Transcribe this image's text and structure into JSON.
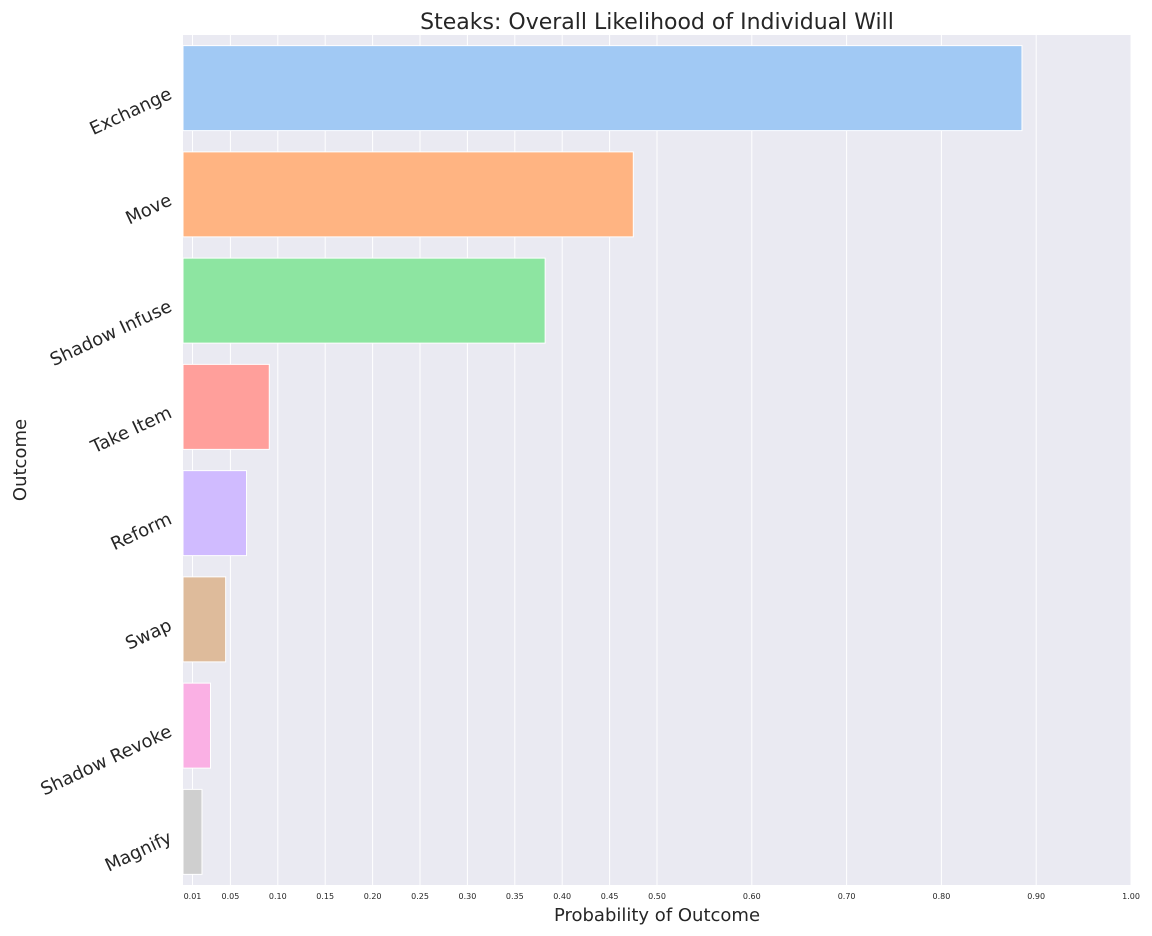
{
  "chart_data": {
    "type": "bar",
    "orientation": "horizontal",
    "title": "Steaks: Overall Likelihood of Individual Will",
    "xlabel": "Probability of Outcome",
    "ylabel": "Outcome",
    "xlim": [
      0,
      1.0
    ],
    "grid": true,
    "xticks": [
      {
        "value": 0.01,
        "label": "0.01"
      },
      {
        "value": 0.05,
        "label": "0.05"
      },
      {
        "value": 0.1,
        "label": "0.10"
      },
      {
        "value": 0.15,
        "label": "0.15"
      },
      {
        "value": 0.2,
        "label": "0.20"
      },
      {
        "value": 0.25,
        "label": "0.25"
      },
      {
        "value": 0.3,
        "label": "0.30"
      },
      {
        "value": 0.35,
        "label": "0.35"
      },
      {
        "value": 0.4,
        "label": "0.40"
      },
      {
        "value": 0.45,
        "label": "0.45"
      },
      {
        "value": 0.5,
        "label": "0.50"
      },
      {
        "value": 0.6,
        "label": "0.60"
      },
      {
        "value": 0.7,
        "label": "0.70"
      },
      {
        "value": 0.8,
        "label": "0.80"
      },
      {
        "value": 0.9,
        "label": "0.90"
      },
      {
        "value": 1.0,
        "label": "1.00"
      }
    ],
    "categories": [
      "Exchange",
      "Move",
      "Shadow Infuse",
      "Take Item",
      "Reform",
      "Swap",
      "Shadow Revoke",
      "Magnify"
    ],
    "values": [
      0.885,
      0.475,
      0.382,
      0.091,
      0.067,
      0.045,
      0.029,
      0.02
    ],
    "colors": [
      "#a1c9f4",
      "#ffb482",
      "#8de5a1",
      "#ff9f9b",
      "#d0bbff",
      "#debb9b",
      "#fab0e4",
      "#cfcfcf"
    ],
    "plot_background": "#eaeaf2",
    "grid_color": "#ffffff"
  }
}
